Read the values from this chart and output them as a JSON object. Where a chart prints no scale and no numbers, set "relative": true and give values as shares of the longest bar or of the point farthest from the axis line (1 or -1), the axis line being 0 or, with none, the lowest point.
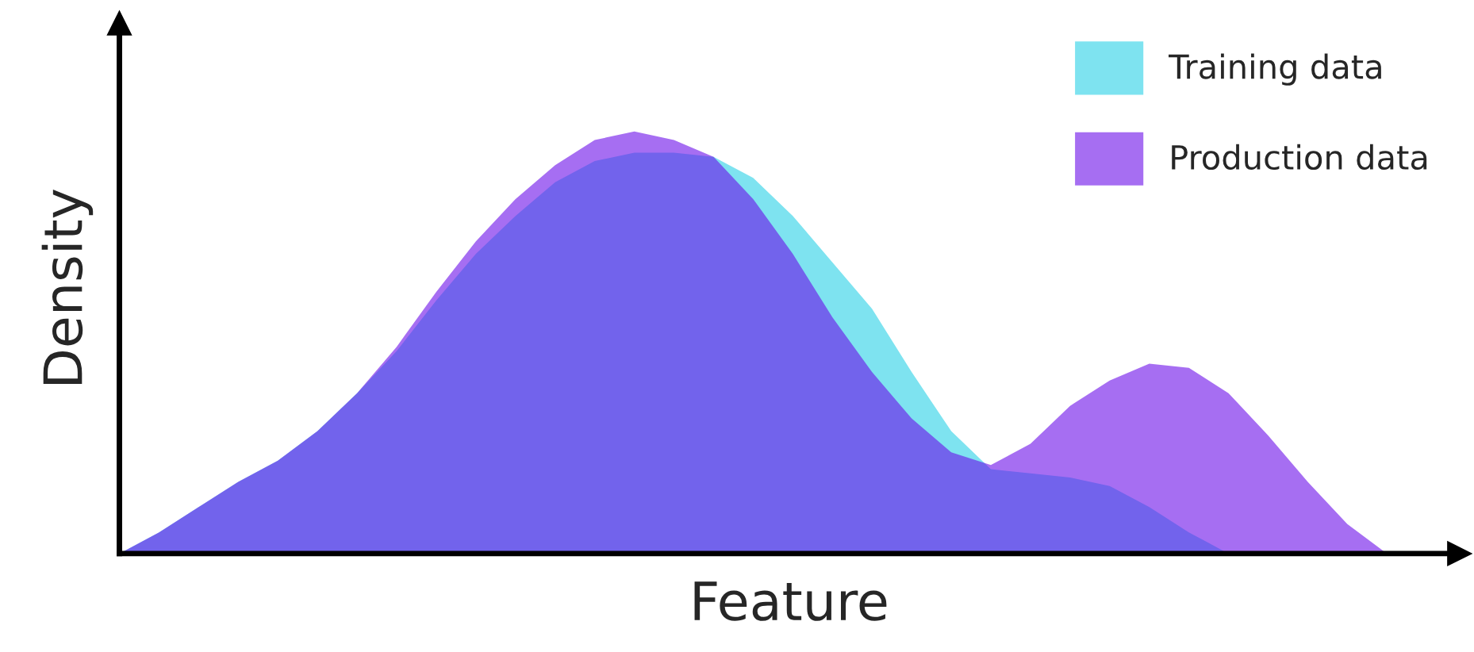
{
  "chart_data": {
    "type": "area",
    "relative": true,
    "xlabel": "Feature",
    "ylabel": "Density",
    "legend": "top right",
    "tick_labels": false,
    "categories": [
      null,
      null,
      null,
      null,
      null,
      null,
      null,
      null,
      null,
      null,
      null,
      null,
      null,
      null,
      null,
      null,
      null,
      null,
      null,
      null,
      null,
      null,
      null,
      null,
      null,
      null,
      null,
      null,
      null,
      null,
      null,
      null,
      null,
      null
    ],
    "series": [
      {
        "name": "Training data",
        "color": "#7ee3f0",
        "values": [
          0,
          0.05,
          0.11,
          0.17,
          0.22,
          0.29,
          0.38,
          0.48,
          0.6,
          0.71,
          0.8,
          0.88,
          0.93,
          0.95,
          0.95,
          0.94,
          0.89,
          0.8,
          0.69,
          0.58,
          0.43,
          0.29,
          0.2,
          0.19,
          0.18,
          0.16,
          0.11,
          0.05,
          0,
          0,
          0,
          0,
          0,
          0
        ]
      },
      {
        "name": "Production data",
        "color": "#a66ef2",
        "values": [
          0,
          0.05,
          0.11,
          0.17,
          0.22,
          0.29,
          0.38,
          0.49,
          0.62,
          0.74,
          0.84,
          0.92,
          0.98,
          1.0,
          0.98,
          0.94,
          0.84,
          0.71,
          0.56,
          0.43,
          0.32,
          0.24,
          0.21,
          0.26,
          0.35,
          0.41,
          0.45,
          0.44,
          0.38,
          0.28,
          0.17,
          0.07,
          0,
          0
        ]
      }
    ]
  }
}
